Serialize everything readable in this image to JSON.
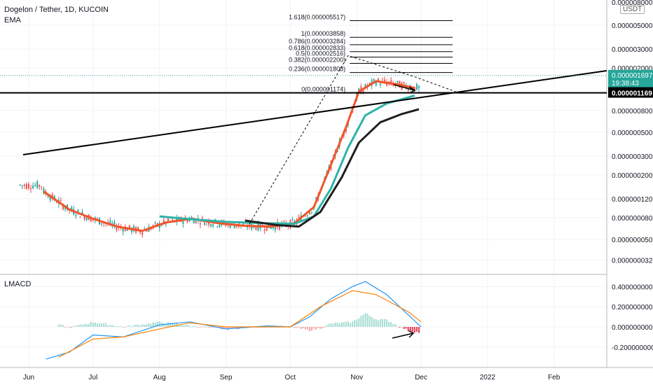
{
  "header": {
    "title": "Dogelon / Tether, 1D, KUCOIN",
    "indicator": "EMA",
    "currency_badge": "USDT",
    "lower_indicator": "LMACD"
  },
  "chart_data": [
    {
      "type": "line",
      "panel": "price",
      "title": "Dogelon / Tether, 1D, KUCOIN",
      "scale": "log",
      "ylim": [
        3e-08,
        1e-05
      ],
      "y_ticks": [
        "0.000005000",
        "0.000003000",
        "0.000002000",
        "0.000000800",
        "0.000000500",
        "0.000000300",
        "0.000000200",
        "0.000000120",
        "0.000000080",
        "0.000000050",
        "0.000000032"
      ],
      "y_tick_values": [
        5e-06,
        3e-06,
        2e-06,
        8e-07,
        5e-07,
        3e-07,
        2e-07,
        1.2e-07,
        8e-08,
        5e-08,
        3.2e-08
      ],
      "top_tick_partial": "0.000008000",
      "x_ticks": [
        "Jun",
        "Jul",
        "Aug",
        "Sep",
        "Oct",
        "Nov",
        "Dec",
        "2022",
        "Feb"
      ],
      "x_tick_dates": [
        "2021-06-01",
        "2021-07-01",
        "2021-08-01",
        "2021-09-01",
        "2021-10-01",
        "2021-11-01",
        "2021-12-01",
        "2022-01-01",
        "2022-02-01"
      ],
      "last_price": {
        "value": "0.000001697",
        "countdown": "19:38:43",
        "color": "#26a69a"
      },
      "level_label": {
        "value": "0.000001169",
        "color": "#000000"
      },
      "fib_levels": [
        {
          "label": "1.618(0.000005517)",
          "value": 5.517e-06
        },
        {
          "label": "1(0.000003858)",
          "value": 3.858e-06
        },
        {
          "label": "0.786(0.000003284)",
          "value": 3.284e-06
        },
        {
          "label": "0.618(0.000002833)",
          "value": 2.833e-06
        },
        {
          "label": "0.5(0.000002516)",
          "value": 2.516e-06
        },
        {
          "label": "0.382(0.000002200)",
          "value": 2.2e-06
        },
        {
          "label": "0.236(0.000001808)",
          "value": 1.808e-06
        },
        {
          "label": "0(0.000001174)",
          "value": 1.174e-06
        }
      ],
      "series": [
        {
          "role": "ema-fast",
          "color": "#f0552c",
          "x": [
            "2021-06-08",
            "2021-06-20",
            "2021-07-01",
            "2021-07-12",
            "2021-07-24",
            "2021-08-04",
            "2021-08-16",
            "2021-08-28",
            "2021-09-10",
            "2021-09-22",
            "2021-10-03",
            "2021-10-12",
            "2021-10-20",
            "2021-10-27",
            "2021-11-02",
            "2021-11-10",
            "2021-11-20",
            "2021-11-28"
          ],
          "y": [
            1.4e-07,
            9.5e-08,
            7.8e-08,
            6.6e-08,
            6e-08,
            7.2e-08,
            7.8e-08,
            7.1e-08,
            6.7e-08,
            6.6e-08,
            7.1e-08,
            1e-07,
            2.5e-07,
            5.6e-07,
            1.2e-06,
            1.5e-06,
            1.4e-06,
            1.3e-06
          ]
        },
        {
          "role": "ema-mid",
          "color": "#2db3a6",
          "x": [
            "2021-08-01",
            "2021-08-16",
            "2021-09-01",
            "2021-09-18",
            "2021-10-03",
            "2021-10-12",
            "2021-10-20",
            "2021-10-28",
            "2021-11-05",
            "2021-11-15",
            "2021-11-28"
          ],
          "y": [
            8.2e-08,
            7.7e-08,
            7.3e-08,
            7.1e-08,
            7e-08,
            8.2e-08,
            1.5e-07,
            3.6e-07,
            7.2e-07,
            9.3e-07,
            1.1e-06
          ]
        },
        {
          "role": "ema-slow",
          "color": "#1f1f1f",
          "x": [
            "2021-09-10",
            "2021-09-25",
            "2021-10-05",
            "2021-10-15",
            "2021-10-25",
            "2021-11-02",
            "2021-11-12",
            "2021-11-22",
            "2021-11-30"
          ],
          "y": [
            7.5e-08,
            6.8e-08,
            6.6e-08,
            9e-08,
            1.9e-07,
            4e-07,
            6.2e-07,
            7.4e-07,
            8.2e-07
          ]
        }
      ]
    },
    {
      "type": "bar",
      "panel": "LMACD",
      "title": "LMACD",
      "ylim": [
        -0.3,
        0.5
      ],
      "y_ticks": [
        "0.400000000",
        "0.200000000",
        "0.000000000",
        "-0.200000000"
      ],
      "y_tick_values": [
        0.4,
        0.2,
        0.0,
        -0.2
      ],
      "lines": [
        {
          "role": "macd",
          "color": "#2196f3",
          "x": [
            "2021-06-09",
            "2021-06-20",
            "2021-07-01",
            "2021-07-15",
            "2021-08-01",
            "2021-08-15",
            "2021-09-01",
            "2021-09-20",
            "2021-10-01",
            "2021-10-10",
            "2021-10-20",
            "2021-10-30",
            "2021-11-05",
            "2021-11-15",
            "2021-11-25",
            "2021-12-01"
          ],
          "y": [
            -0.32,
            -0.25,
            -0.08,
            -0.1,
            0.02,
            0.05,
            -0.02,
            0.01,
            0.0,
            0.1,
            0.28,
            0.4,
            0.45,
            0.32,
            0.12,
            0.0
          ]
        },
        {
          "role": "signal",
          "color": "#ff7f00",
          "x": [
            "2021-06-15",
            "2021-07-01",
            "2021-07-15",
            "2021-08-01",
            "2021-08-15",
            "2021-09-01",
            "2021-09-20",
            "2021-10-01",
            "2021-10-15",
            "2021-10-30",
            "2021-11-10",
            "2021-11-25",
            "2021-12-01"
          ],
          "y": [
            -0.3,
            -0.12,
            -0.1,
            -0.02,
            0.04,
            0.0,
            0.0,
            0.0,
            0.2,
            0.36,
            0.32,
            0.15,
            0.05
          ]
        }
      ]
    }
  ],
  "colors": {
    "up_candle": "#26a69a",
    "down_candle": "#ef5350",
    "grid": "#f0f3fa",
    "axis_text": "#131722"
  }
}
